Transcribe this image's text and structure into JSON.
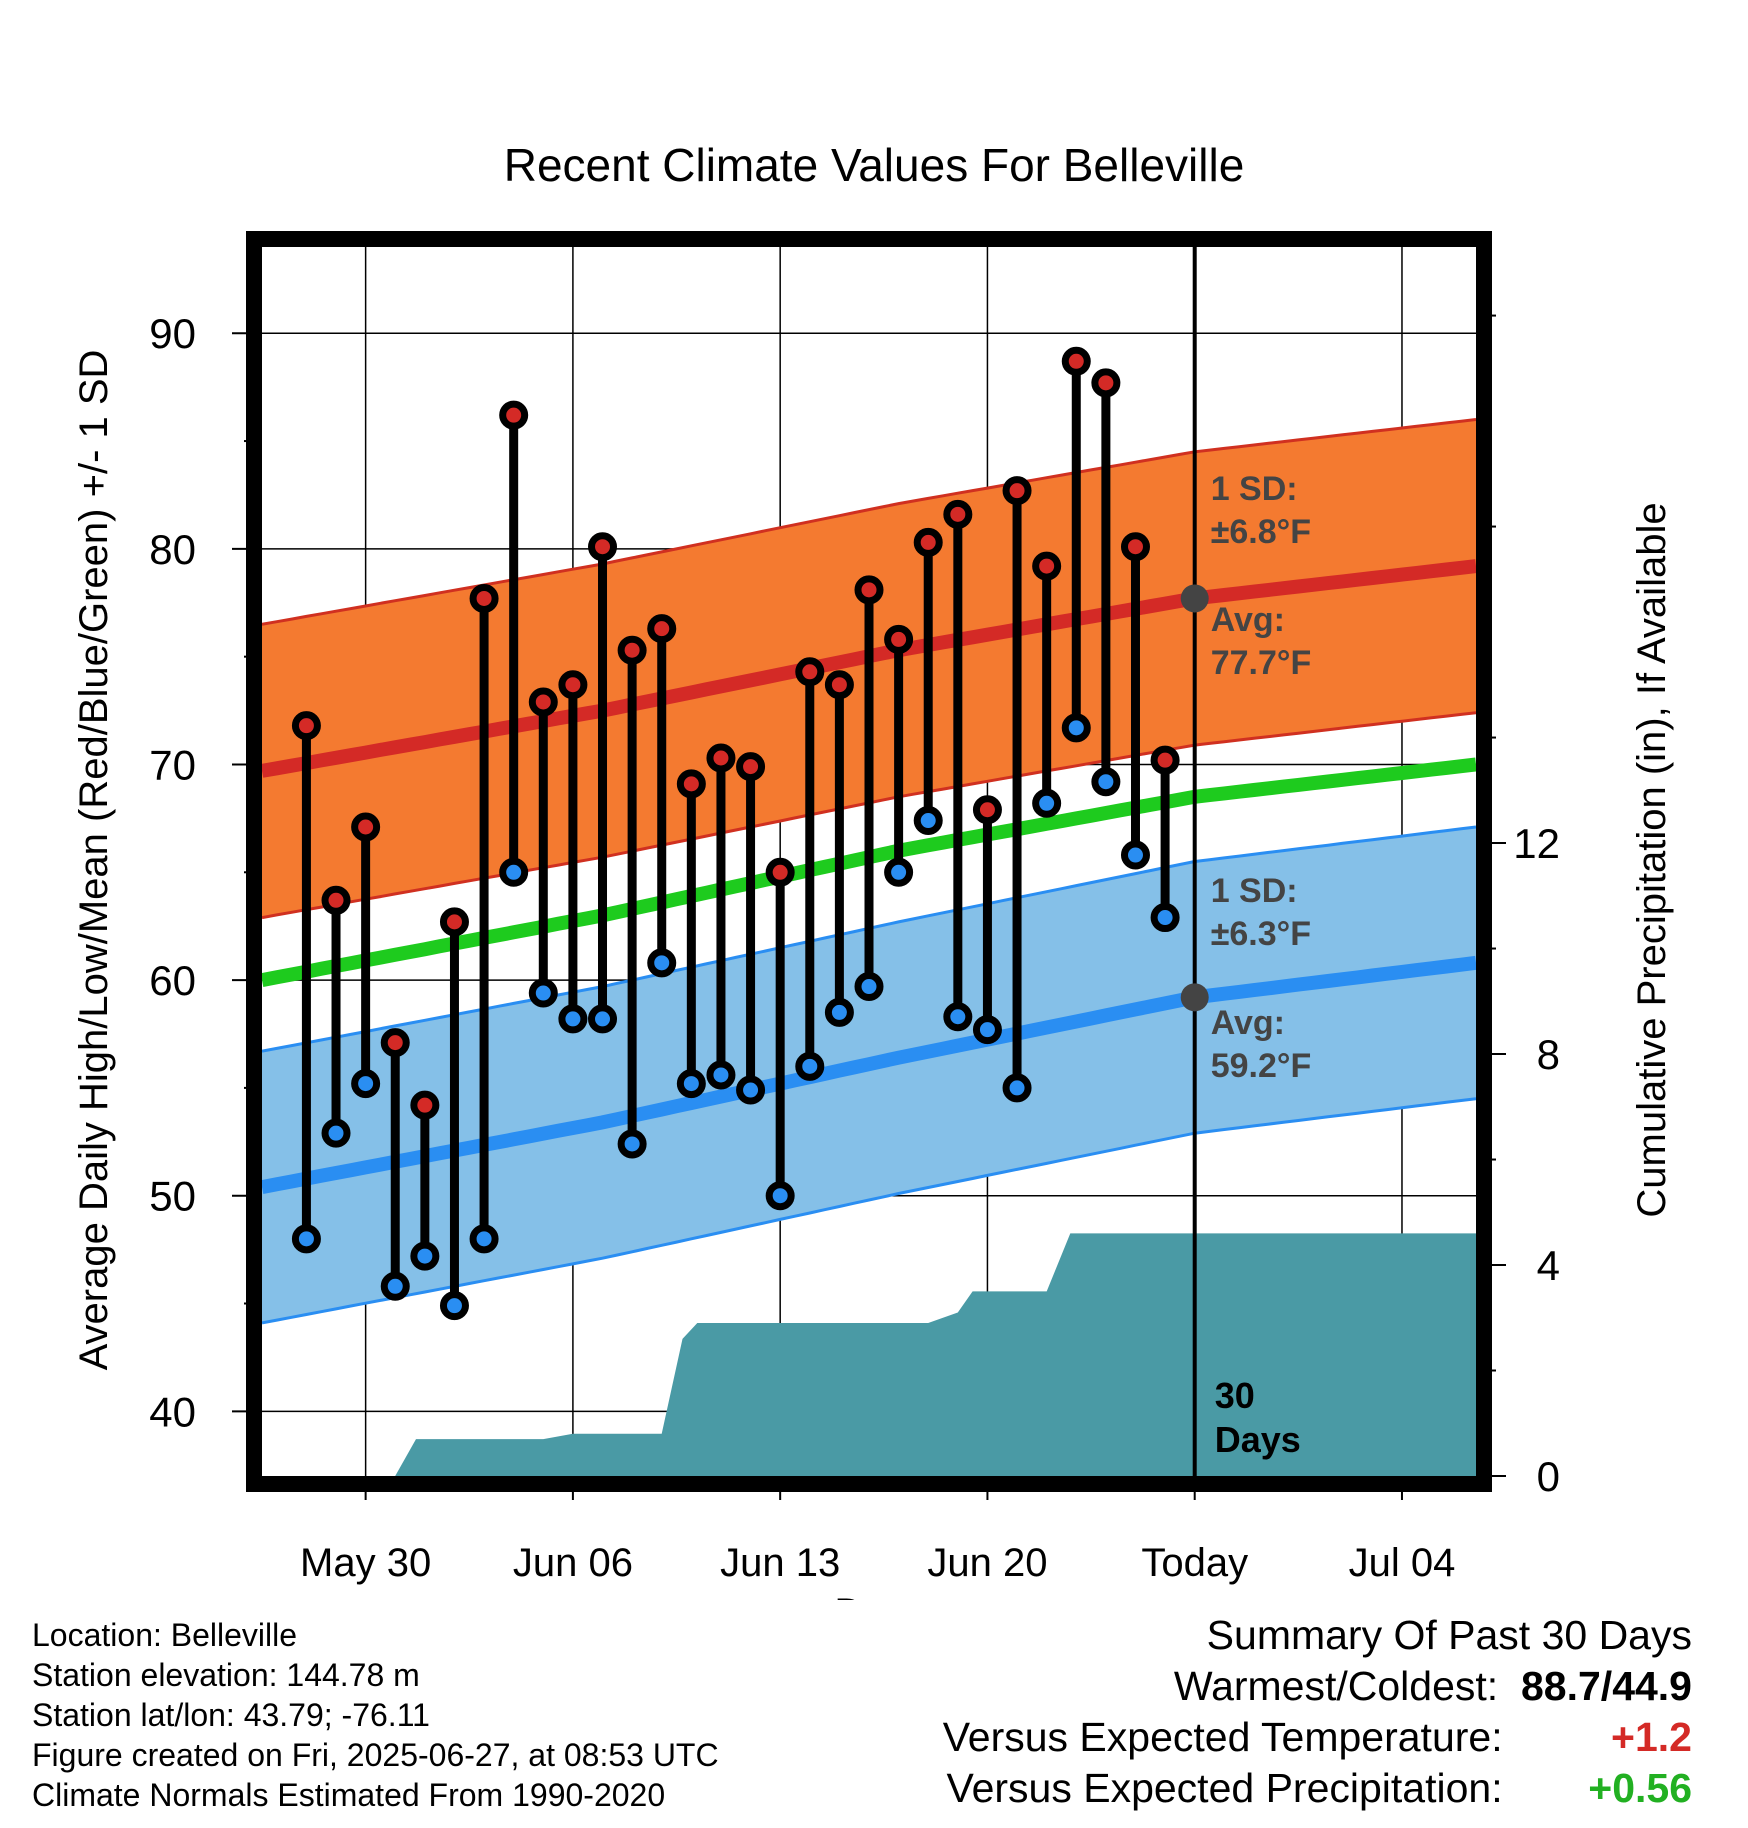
{
  "chart_data": {
    "type": "line",
    "title": "Recent Climate Values For Belleville",
    "xlabel": "Day",
    "ylabel": "Average Daily High/Low/Mean (Red/Blue/Green) +/- 1 SD",
    "y2label": "Cumulative Precipitation (in), If Available",
    "x_ticks": [
      "May 30",
      "Jun 06",
      "Jun 13",
      "Jun 20",
      "Today",
      "Jul 04"
    ],
    "y_ticks": [
      40,
      50,
      60,
      70,
      80,
      90
    ],
    "y2_ticks": [
      0,
      4,
      8,
      12
    ],
    "ylim": [
      37,
      94
    ],
    "y2lim": [
      0,
      23.3
    ],
    "x_range_days_relative_to_today": [
      -31.5,
      9.5
    ],
    "grid": true,
    "today_marker_label": "30 Days",
    "days": [
      -30,
      -29,
      -28,
      -27,
      -26,
      -25,
      -24,
      -23,
      -22,
      -21,
      -20,
      -19,
      -18,
      -17,
      -16,
      -15,
      -14,
      -13,
      -12,
      -11,
      -10,
      -9,
      -8,
      -7,
      -6,
      -5,
      -4,
      -3,
      -2,
      -1
    ],
    "daily_high": [
      71.8,
      63.7,
      67.1,
      57.1,
      54.2,
      62.7,
      77.7,
      86.2,
      72.9,
      73.7,
      80.1,
      75.3,
      76.3,
      69.1,
      70.3,
      69.9,
      65.0,
      74.3,
      73.7,
      78.1,
      75.8,
      80.3,
      81.6,
      67.9,
      82.7,
      79.2,
      88.7,
      87.7,
      80.1,
      70.2
    ],
    "daily_low": [
      48.0,
      52.9,
      55.2,
      45.8,
      47.2,
      44.9,
      48.0,
      65.0,
      59.4,
      58.2,
      58.2,
      52.4,
      60.8,
      55.2,
      55.6,
      54.9,
      50.0,
      56.0,
      58.5,
      59.7,
      65.0,
      67.4,
      58.3,
      57.7,
      55.0,
      68.2,
      71.7,
      69.2,
      65.8,
      62.9
    ],
    "normal_high": {
      "x": [
        -31.5,
        -20,
        -10,
        0,
        9.5
      ],
      "values": [
        69.7,
        72.5,
        75.3,
        77.7,
        79.2
      ]
    },
    "normal_high_sd": 6.8,
    "normal_low": {
      "x": [
        -31.5,
        -20,
        -10,
        0,
        9.5
      ],
      "values": [
        50.4,
        53.4,
        56.4,
        59.2,
        60.8
      ]
    },
    "normal_low_sd": 6.3,
    "normal_mean": {
      "x": [
        -31.5,
        -20,
        -10,
        0,
        9.5
      ],
      "values": [
        60.0,
        63.0,
        66.0,
        68.5,
        70.0
      ]
    },
    "cumulative_precip": {
      "x": [
        -31.5,
        -27.0,
        -26.3,
        -22.0,
        -21.0,
        -20.3,
        -18.0,
        -17.3,
        -16.8,
        -16.0,
        -14.0,
        -12.0,
        -10.0,
        -9.0,
        -8.0,
        -7.5,
        -6.5,
        -5.0,
        -4.2,
        -2.0,
        -1.0,
        9.5
      ],
      "values": [
        0,
        0,
        0.7,
        0.7,
        0.8,
        0.8,
        0.8,
        2.6,
        2.9,
        2.9,
        2.9,
        2.9,
        2.9,
        2.9,
        3.1,
        3.5,
        3.5,
        3.5,
        4.6,
        4.6,
        4.6,
        4.6
      ]
    },
    "annotations": {
      "high_sd_label": "1 SD:",
      "high_sd_value": "±6.8°F",
      "high_avg_label": "Avg:",
      "high_avg_value": "77.7°F",
      "low_sd_label": "1 SD:",
      "low_sd_value": "±6.3°F",
      "low_avg_label": "Avg:",
      "low_avg_value": "59.2°F",
      "high_avg_marker": 77.7,
      "low_avg_marker": 59.2
    },
    "colors": {
      "high_band": "#f47a30",
      "high_line": "#d42a26",
      "high_edge": "#d03020",
      "low_band": "#85c0e8",
      "low_line": "#2a8ef2",
      "low_edge": "#2a8ef2",
      "mean_line": "#1ecb1e",
      "precip": "#4a9aa5",
      "high_dot": "#d42a26",
      "low_dot": "#2a8ef2",
      "marker": "#444444",
      "annotation_text": "#444444"
    }
  },
  "footer": {
    "location": "Location: Belleville",
    "elevation": "Station elevation: 144.78 m",
    "latlon": "Station lat/lon: 43.79; -76.11",
    "created": "Figure created on Fri, 2025-06-27, at 08:53 UTC",
    "normals": "Climate Normals Estimated From 1990-2020"
  },
  "summary": {
    "title": "Summary Of Past 30 Days",
    "warmest_label": "Warmest/Coldest:",
    "warmest_value": "88.7",
    "coldest_value": "44.9",
    "temp_label": "Versus Expected Temperature:",
    "temp_value": "+1.2",
    "temp_color": "#d42a26",
    "precip_label": "Versus Expected Precipitation:",
    "precip_value": "+0.56",
    "precip_color": "#22b022"
  }
}
